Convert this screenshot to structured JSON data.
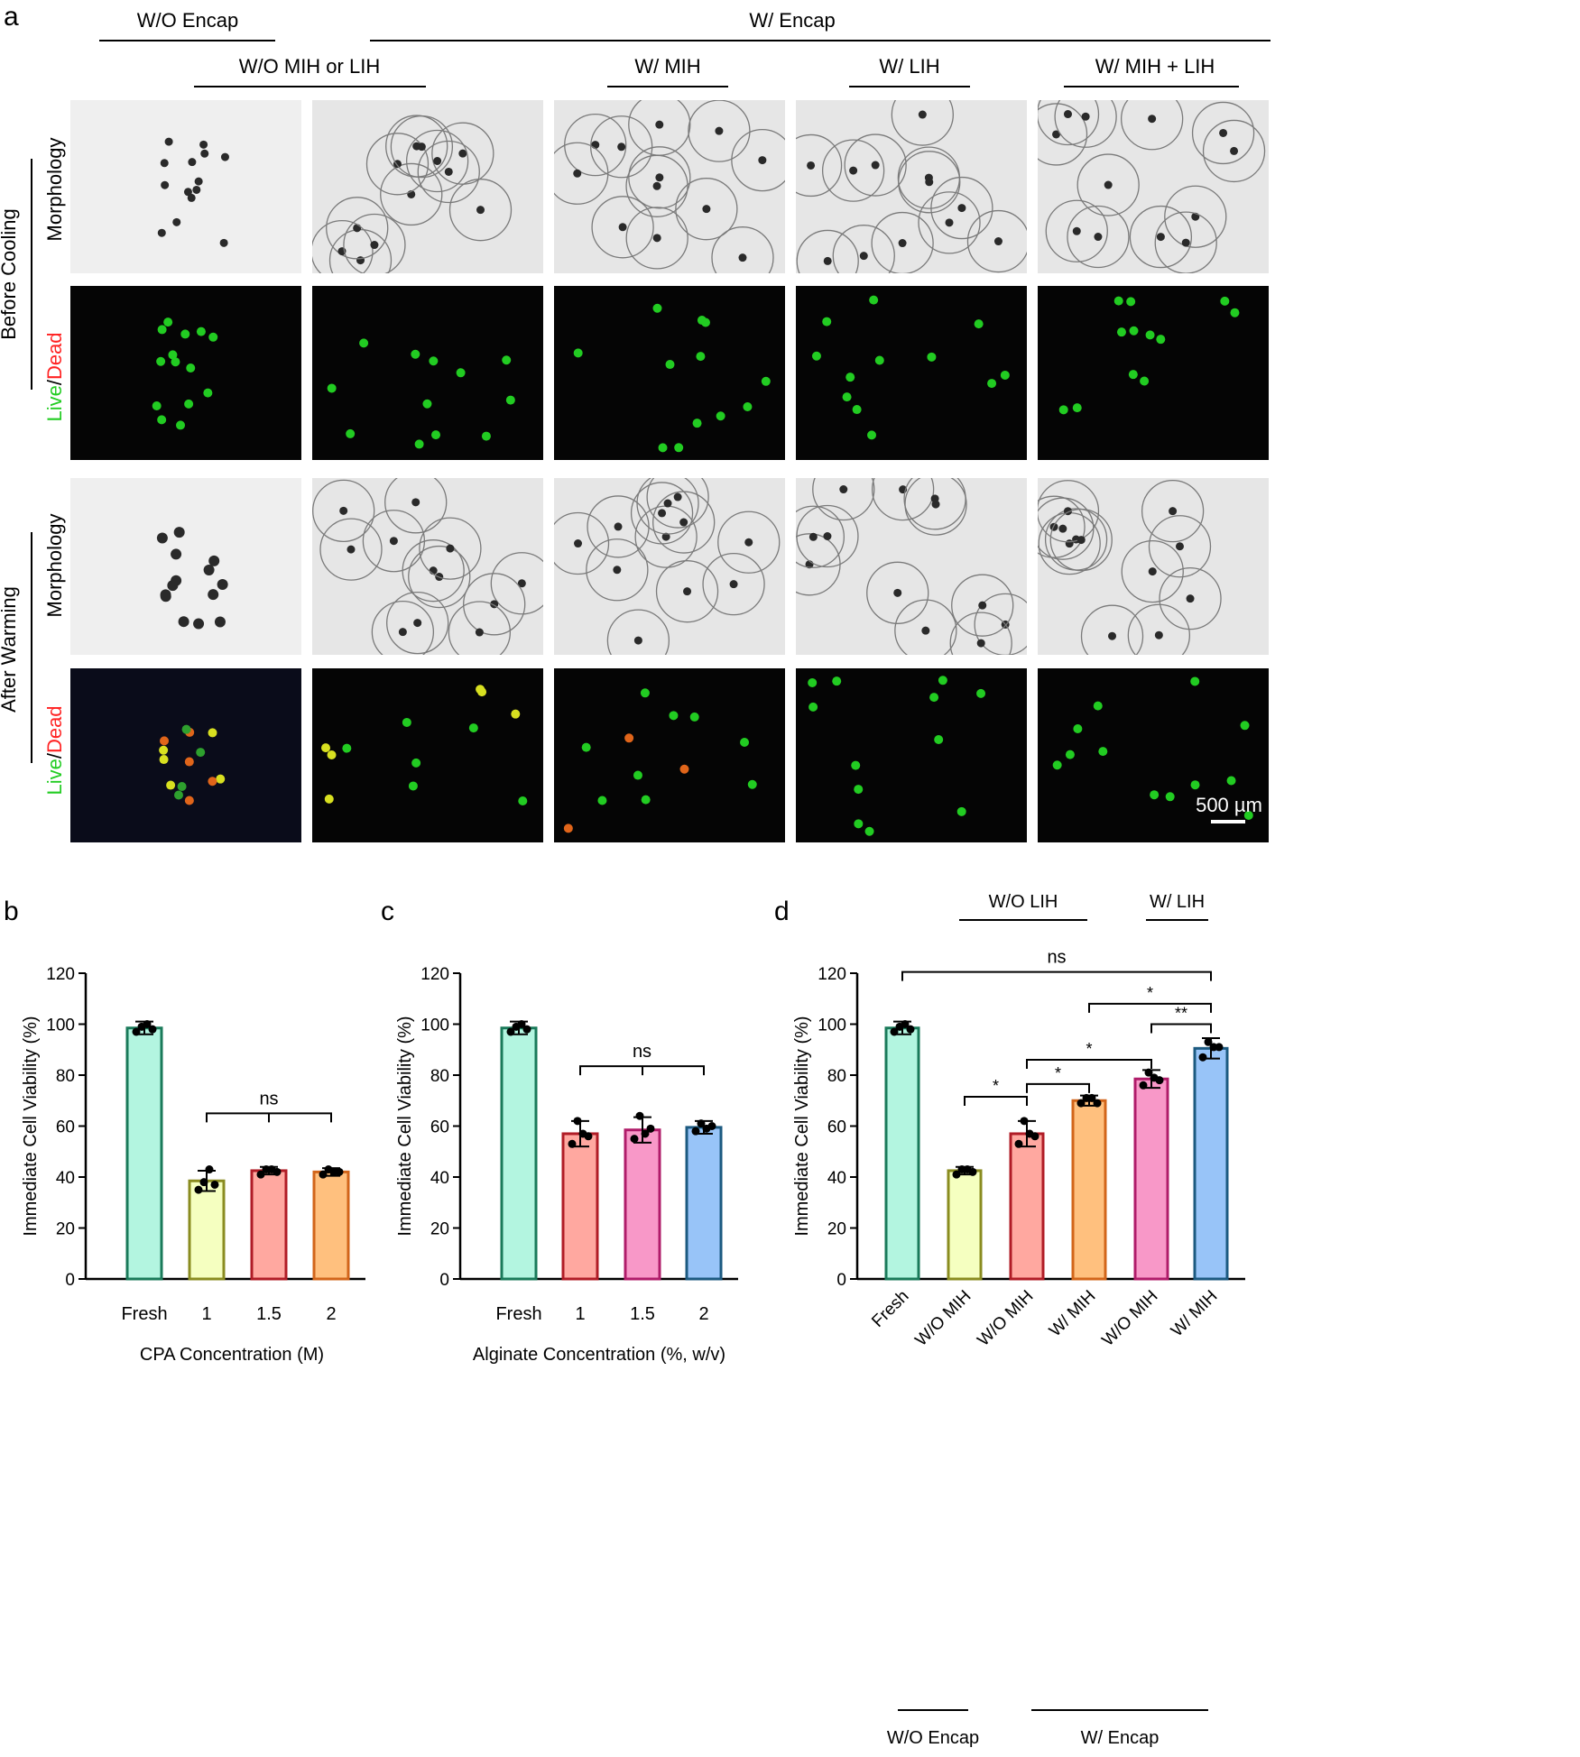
{
  "panel_a": {
    "letter": "a",
    "header_top": {
      "wo_encap": "W/O Encap",
      "w_encap": "W/ Encap"
    },
    "group_labels": [
      "W/O MIH or LIH",
      "W/ MIH",
      "W/ LIH",
      "W/ MIH + LIH"
    ],
    "row_groups": [
      "Before Cooling",
      "After Warming"
    ],
    "row_labels": {
      "morphology": "Morphology",
      "live": "Live",
      "slash": "/",
      "dead": "Dead"
    },
    "scale_bar": "500 µm",
    "colors": {
      "live": "#22cc22",
      "dead": "#ff2222",
      "dead_cell": "#e0651a",
      "yellow_cell": "#d8e020",
      "background_bright": "#ebebeb",
      "background_dark": "#050505"
    }
  },
  "chart_data": [
    {
      "panel": "b",
      "type": "bar",
      "ylabel": "Immediate Cell Viability (%)",
      "xlabel": "CPA Concentration (M)",
      "ylim": [
        0,
        120
      ],
      "yticks": [
        0,
        20,
        40,
        60,
        80,
        100,
        120
      ],
      "categories": [
        "Fresh",
        "1",
        "1.5",
        "2"
      ],
      "values": [
        98.5,
        38.5,
        42.5,
        42
      ],
      "errors": [
        2.5,
        4,
        1.5,
        1.5
      ],
      "points": [
        [
          97,
          99,
          100,
          98
        ],
        [
          35,
          38,
          43,
          37
        ],
        [
          41,
          43,
          43,
          42
        ],
        [
          41,
          43,
          42,
          42
        ]
      ],
      "fill_colors": [
        "#b3f5e0",
        "#f5ffc0",
        "#ffa8a0",
        "#ffc07e"
      ],
      "edge_colors": [
        "#1a7a5a",
        "#8a8c20",
        "#b01c26",
        "#d2651a"
      ],
      "significance": [
        {
          "from": 1,
          "to": 3,
          "label": "ns",
          "level": 65
        }
      ]
    },
    {
      "panel": "c",
      "type": "bar",
      "ylabel": "Immediate Cell Viability (%)",
      "xlabel": "Alginate Concentration (%, w/v)",
      "ylim": [
        0,
        120
      ],
      "yticks": [
        0,
        20,
        40,
        60,
        80,
        100,
        120
      ],
      "categories": [
        "Fresh",
        "1",
        "1.5",
        "2"
      ],
      "values": [
        98.5,
        57,
        58.5,
        59.5
      ],
      "errors": [
        2.5,
        5,
        5,
        2.5
      ],
      "points": [
        [
          97,
          99,
          100,
          98
        ],
        [
          53,
          62,
          57,
          56
        ],
        [
          55,
          64,
          57,
          59
        ],
        [
          58,
          61,
          59,
          60
        ]
      ],
      "fill_colors": [
        "#b3f5e0",
        "#ffa8a0",
        "#f898c8",
        "#98c4f8"
      ],
      "edge_colors": [
        "#1a7a5a",
        "#b01c26",
        "#b01c6a",
        "#1c5a80"
      ],
      "significance": [
        {
          "from": 1,
          "to": 3,
          "label": "ns",
          "level": 83.5
        }
      ]
    },
    {
      "panel": "d",
      "type": "bar",
      "ylabel": "Immediate Cell Viability (%)",
      "ylim": [
        0,
        120
      ],
      "yticks": [
        0,
        20,
        40,
        60,
        80,
        100,
        120
      ],
      "categories": [
        "Fresh",
        "W/O MIH",
        "W/O MIH",
        "W/ MIH",
        "W/O MIH",
        "W/ MIH"
      ],
      "values": [
        98.5,
        42.5,
        57,
        70,
        78.5,
        90.5
      ],
      "errors": [
        2.5,
        1.5,
        5,
        2,
        3.5,
        4
      ],
      "points": [
        [
          97,
          99,
          100,
          98
        ],
        [
          41,
          43,
          43,
          42
        ],
        [
          53,
          62,
          57,
          56
        ],
        [
          69,
          71,
          71,
          69
        ],
        [
          76,
          81,
          79,
          78
        ],
        [
          87,
          93,
          91,
          91
        ]
      ],
      "fill_colors": [
        "#b3f5e0",
        "#f5ffc0",
        "#ffa8a0",
        "#ffc07e",
        "#f898c8",
        "#98c4f8"
      ],
      "edge_colors": [
        "#1a7a5a",
        "#8a8c20",
        "#b01c26",
        "#d2651a",
        "#b01c6a",
        "#1c5a80"
      ],
      "group_top": [
        {
          "label": "W/O LIH",
          "from": 1,
          "to": 3
        },
        {
          "label": "W/ LIH",
          "from": 4,
          "to": 5
        }
      ],
      "group_bottom": [
        {
          "label": "W/O Encap",
          "from": 0,
          "to": 1
        },
        {
          "label": "W/ Encap",
          "from": 2,
          "to": 5
        }
      ],
      "significance": [
        {
          "from": 1,
          "to": 2,
          "label": "*",
          "level": 71.5
        },
        {
          "from": 2,
          "to": 3,
          "label": "*",
          "level": 76.5
        },
        {
          "from": 2,
          "to": 4,
          "label": "*",
          "level": 86
        },
        {
          "from": 4,
          "to": 5,
          "label": "**",
          "level": 100
        },
        {
          "from": 3,
          "to": 5,
          "label": "*",
          "level": 108
        },
        {
          "from": 0,
          "to": 5,
          "label": "ns",
          "level": 120.5
        }
      ]
    }
  ]
}
